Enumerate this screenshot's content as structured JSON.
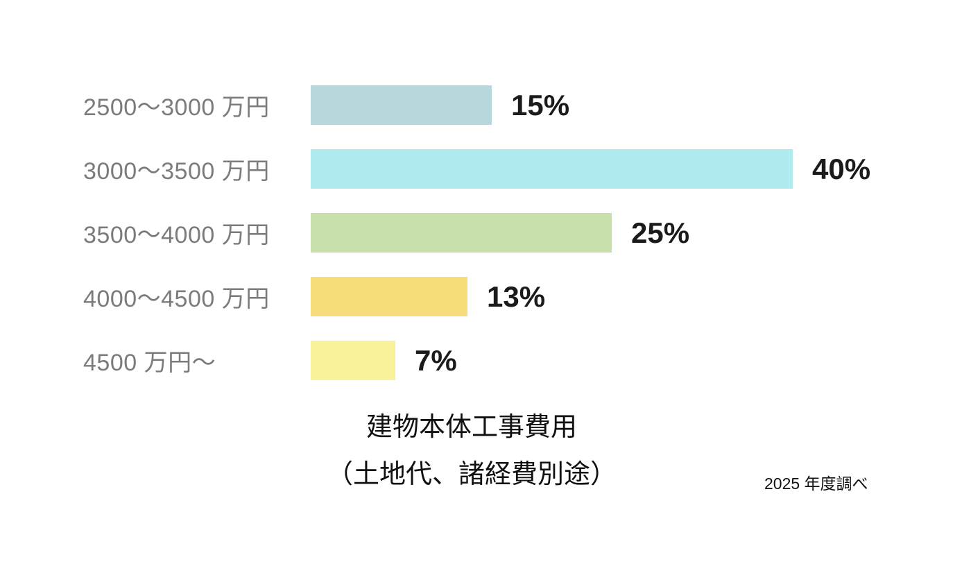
{
  "chart_data": {
    "type": "bar",
    "orientation": "horizontal",
    "categories": [
      "2500〜3000 万円",
      "3000〜3500 万円",
      "3500〜4000 万円",
      "4000〜4500 万円",
      "4500 万円〜"
    ],
    "values": [
      15,
      40,
      25,
      13,
      7
    ],
    "value_labels": [
      "15%",
      "40%",
      "25%",
      "13%",
      "7%"
    ],
    "bar_colors": [
      "#b7d9dd",
      "#b0ebef",
      "#c7e0ac",
      "#f8dd7d",
      "#faf29b"
    ],
    "title": "建物本体工事費用",
    "subtitle": "（土地代、諸経費別途）",
    "footnote": "2025 年度調べ",
    "xlim": [
      0,
      40
    ],
    "grid": false,
    "legend": false,
    "label_color": "#7b7b7b",
    "value_color": "#1b1b1b",
    "background": "#ffffff"
  }
}
